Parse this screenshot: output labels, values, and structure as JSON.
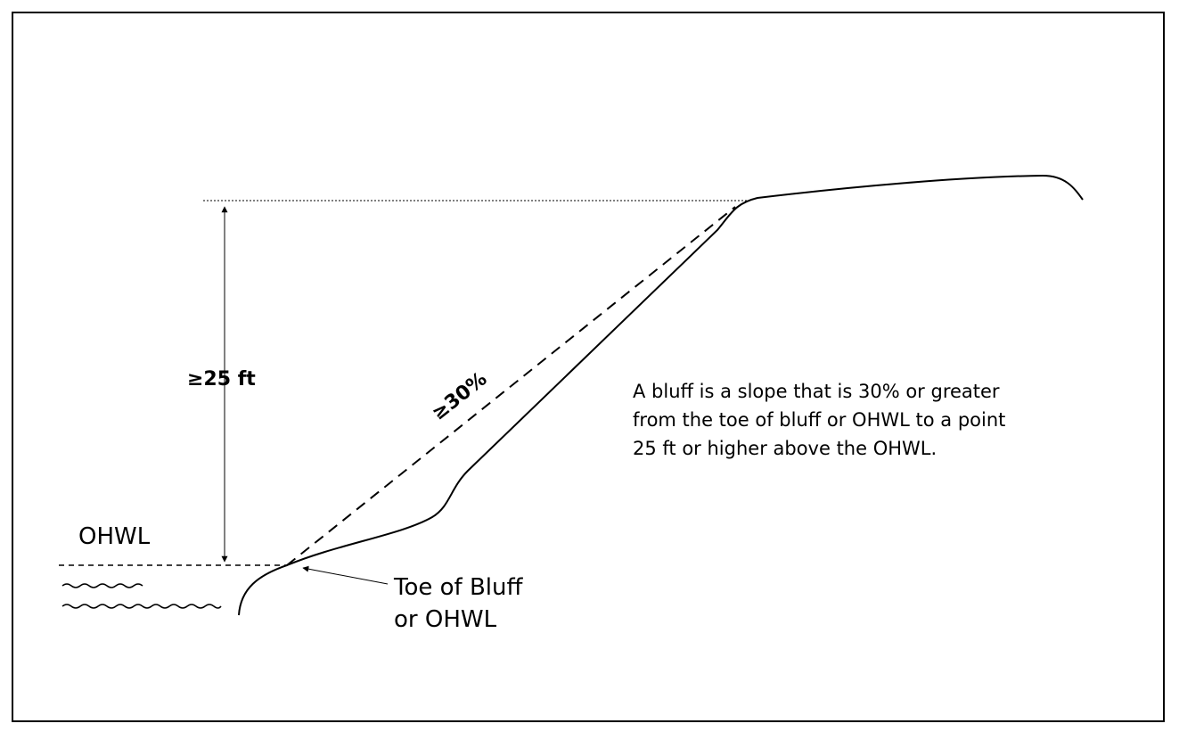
{
  "labels": {
    "height": "≥25 ft",
    "slope": "≥30%",
    "ohwl": "OHWL",
    "toe": [
      "Toe of Bluff",
      "or OHWL"
    ]
  },
  "description": [
    "A bluff is a slope that is 30% or greater",
    "from the toe of bluff or OHWL to a point",
    "25 ft or higher above the OHWL."
  ]
}
